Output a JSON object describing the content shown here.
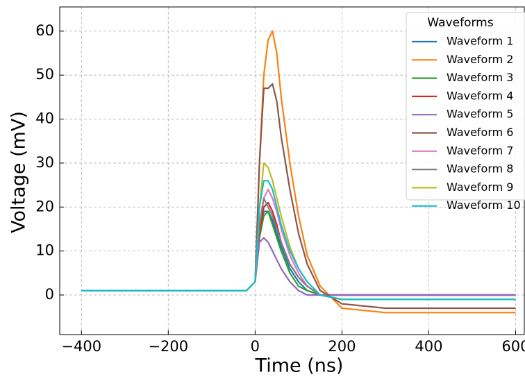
{
  "chart_data": {
    "type": "line",
    "xlabel": "Time (ns)",
    "ylabel": "Voltage (mV)",
    "x": [
      -400,
      -300,
      -200,
      -100,
      -20,
      0,
      10,
      20,
      30,
      40,
      50,
      60,
      80,
      100,
      120,
      150,
      200,
      300,
      400,
      500,
      600
    ],
    "series": [
      {
        "name": "Waveform 1",
        "color": "#1f77b4",
        "values": [
          1,
          1,
          1,
          1,
          1,
          3,
          14,
          19,
          19,
          17,
          14,
          11,
          6,
          3,
          1,
          0,
          0,
          0,
          0,
          0,
          0
        ]
      },
      {
        "name": "Waveform 2",
        "color": "#ff7f0e",
        "values": [
          1,
          1,
          1,
          1,
          1,
          3,
          30,
          50,
          58,
          60,
          55,
          45,
          30,
          18,
          9,
          2,
          -3,
          -4,
          -4,
          -4,
          -4
        ]
      },
      {
        "name": "Waveform 3",
        "color": "#2ca02c",
        "values": [
          1,
          1,
          1,
          1,
          1,
          3,
          13,
          18,
          19,
          16,
          13,
          10,
          5,
          2,
          1,
          0,
          0,
          0,
          0,
          0,
          0
        ]
      },
      {
        "name": "Waveform 4",
        "color": "#d62728",
        "values": [
          1,
          1,
          1,
          1,
          1,
          3,
          14,
          20,
          21,
          19,
          16,
          12,
          7,
          4,
          2,
          0,
          0,
          0,
          0,
          0,
          0
        ]
      },
      {
        "name": "Waveform 5",
        "color": "#9467bd",
        "values": [
          1,
          1,
          1,
          1,
          1,
          3,
          12,
          13,
          12,
          10,
          8,
          6,
          3,
          1,
          0,
          0,
          0,
          0,
          0,
          0,
          0
        ]
      },
      {
        "name": "Waveform 6",
        "color": "#8c564b",
        "values": [
          1,
          1,
          1,
          1,
          1,
          3,
          30,
          47,
          47,
          48,
          44,
          36,
          24,
          14,
          7,
          1,
          -2,
          -3,
          -3,
          -3,
          -3
        ]
      },
      {
        "name": "Waveform 7",
        "color": "#e377c2",
        "values": [
          1,
          1,
          1,
          1,
          1,
          3,
          16,
          22,
          24,
          22,
          19,
          15,
          9,
          5,
          2,
          0,
          -1,
          -1,
          -1,
          -1,
          -1
        ]
      },
      {
        "name": "Waveform 8",
        "color": "#7f7f7f",
        "values": [
          1,
          1,
          1,
          1,
          1,
          3,
          16,
          22,
          20,
          18,
          15,
          12,
          7,
          4,
          2,
          0,
          -1,
          -1,
          -1,
          -1,
          -1
        ]
      },
      {
        "name": "Waveform 9",
        "color": "#bcbd22",
        "values": [
          1,
          1,
          1,
          1,
          1,
          3,
          20,
          30,
          29,
          26,
          22,
          18,
          11,
          6,
          3,
          0,
          -1,
          -1,
          -1,
          -1,
          -1
        ]
      },
      {
        "name": "Waveform 10",
        "color": "#17becf",
        "values": [
          1,
          1,
          1,
          1,
          1,
          3,
          20,
          26,
          26,
          24,
          20,
          16,
          10,
          6,
          3,
          0,
          -1,
          -1,
          -1,
          -1,
          -1
        ]
      }
    ],
    "legend_title": "Waveforms",
    "legend": "upper right",
    "xlim": [
      -450,
      620
    ],
    "ylim": [
      -9,
      65.5
    ],
    "xticks": [
      {
        "value": -400,
        "label": "−400"
      },
      {
        "value": -200,
        "label": "−200"
      },
      0,
      200,
      400,
      600
    ],
    "yticks": [
      0,
      10,
      20,
      30,
      40,
      50,
      60
    ],
    "grid": true
  }
}
